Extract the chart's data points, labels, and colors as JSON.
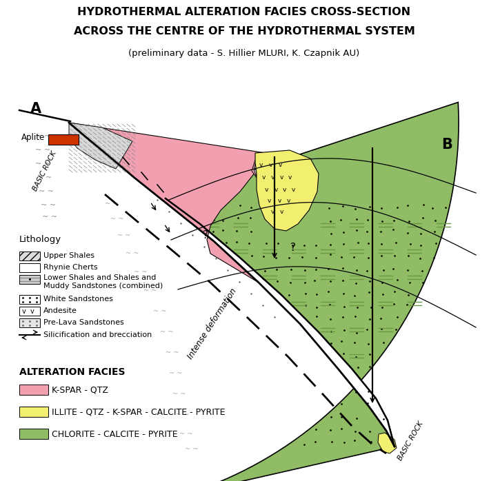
{
  "title_line1": "HYDROTHERMAL ALTERATION FACIES CROSS-SECTION",
  "title_line2": "ACROSS THE CENTRE OF THE HYDROTHERMAL SYSTEM",
  "subtitle": "(preliminary data - S. Hillier MLURI, K. Czapnik AU)",
  "label_A": "A",
  "label_B": "B",
  "label_aplite": "Aplite",
  "label_basic_rock_left": "BASIC ROCK",
  "label_basic_rock_right": "BASIC ROCK",
  "color_pink": "#F2A0B0",
  "color_yellow": "#F2EE70",
  "color_green": "#90BC65",
  "color_green_eq": "#6A9A40",
  "color_red_aplite": "#CC3300",
  "background": "#FFFFFF",
  "legend_lithology_title": "Lithology",
  "alteration_title": "ALTERATION FACIES",
  "alteration_items": [
    "K-SPAR - QTZ",
    "ILLITE - QTZ - K-SPAR - CALCITE - PYRITE",
    "CHLORITE - CALCITE - PYRITE"
  ],
  "alteration_colors": [
    "#F2A0B0",
    "#F2EE70",
    "#90BC65"
  ],
  "dot_color": "#111111",
  "fault_lw": 2.0,
  "curve_lw": 0.9
}
